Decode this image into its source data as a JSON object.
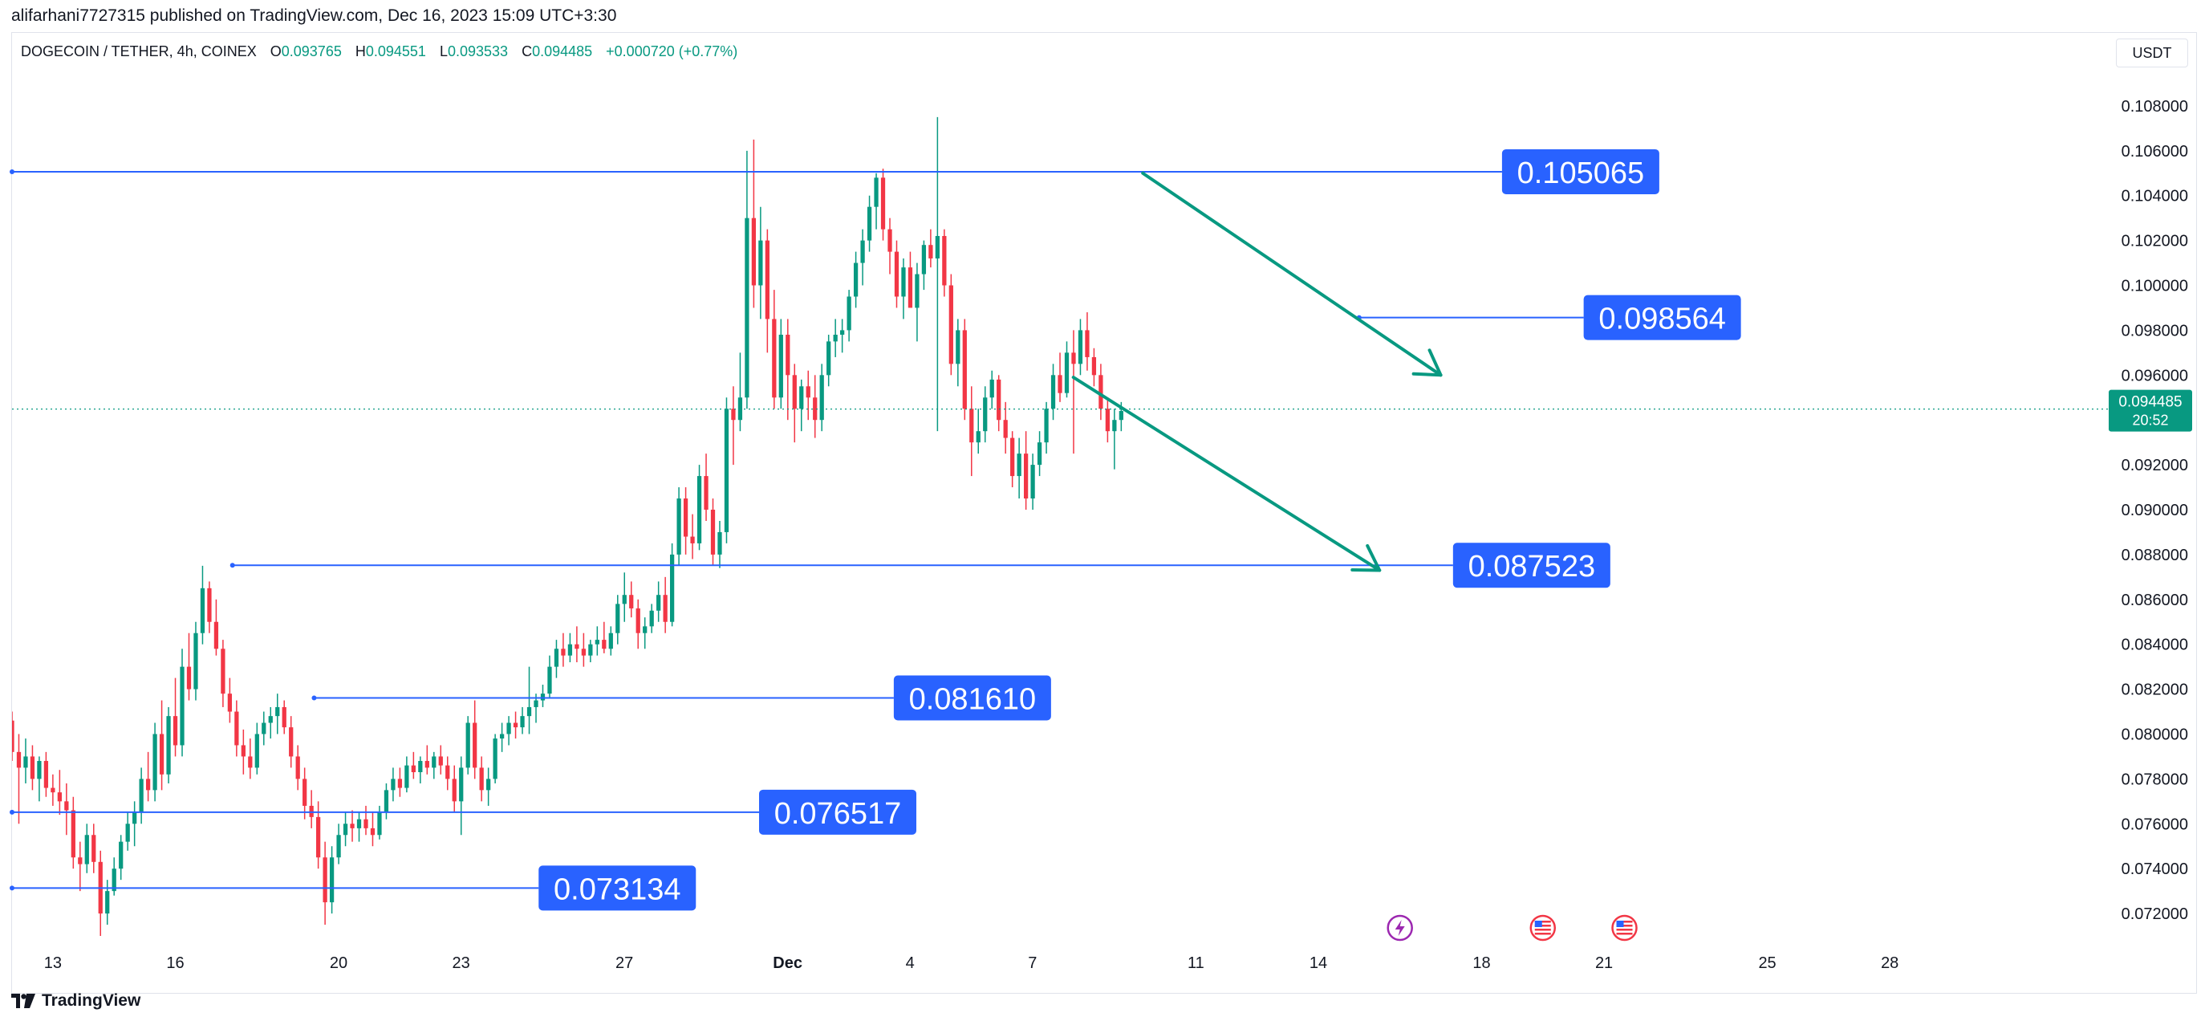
{
  "publisher_line": "alifarhani7727315 published on TradingView.com, Dec 16, 2023 15:09 UTC+3:30",
  "legend": {
    "symbol": "DOGECOIN / TETHER, 4h, COINEX",
    "open_label": "O",
    "open": "0.093765",
    "high_label": "H",
    "high": "0.094551",
    "low_label": "L",
    "low": "0.093533",
    "close_label": "C",
    "close": "0.094485",
    "change": "+0.000720 (+0.77%)"
  },
  "currency": "USDT",
  "footer": {
    "brand": "TradingView"
  },
  "colors": {
    "up": "#089981",
    "down": "#f23645",
    "line": "#2962ff",
    "label_bg": "#2962ff",
    "trend": "#089981"
  },
  "chart_data": {
    "type": "candlestick",
    "symbol": "DOGECOIN / TETHER",
    "interval": "4h",
    "exchange": "COINEX",
    "y_ticks": [
      0.072,
      0.074,
      0.076,
      0.078,
      0.08,
      0.082,
      0.084,
      0.086,
      0.088,
      0.09,
      0.092,
      0.094,
      0.096,
      0.098,
      0.1,
      0.102,
      0.104,
      0.106,
      0.108
    ],
    "y_tick_labels": [
      "0.072000",
      "0.074000",
      "0.076000",
      "0.078000",
      "0.080000",
      "0.082000",
      "0.084000",
      "0.086000",
      "0.088000",
      "0.090000",
      "0.092000",
      "0.094000",
      "0.096000",
      "0.098000",
      "0.100000",
      "0.102000",
      "0.104000",
      "0.106000",
      "0.108000"
    ],
    "ylim": [
      0.0705,
      0.1095
    ],
    "x_ticks": [
      "13",
      "16",
      "20",
      "23",
      "27",
      "Dec",
      "4",
      "7",
      "11",
      "14",
      "18",
      "21",
      "25",
      "28"
    ],
    "x_tick_days": [
      13,
      16,
      20,
      23,
      27,
      31,
      34,
      37,
      41,
      44,
      48,
      51,
      55,
      58
    ],
    "x_tick_bold": [
      "Dec"
    ],
    "xlim_days": [
      12.0,
      63.5
    ],
    "current_price": {
      "value": 0.094485,
      "label": "0.094485",
      "countdown": "20:52"
    },
    "horizontal_levels": [
      {
        "value": 0.105065,
        "label": "0.105065",
        "start_day": 12.0,
        "end_day": 48.5
      },
      {
        "value": 0.098564,
        "label": "0.098564",
        "start_day": 45.0,
        "end_day": 50.5
      },
      {
        "value": 0.087523,
        "label": "0.087523",
        "start_day": 17.4,
        "end_day": 47.3
      },
      {
        "value": 0.08161,
        "label": "0.081610",
        "start_day": 19.4,
        "end_day": 33.6
      },
      {
        "value": 0.076517,
        "label": "0.076517",
        "start_day": 12.0,
        "end_day": 30.3
      },
      {
        "value": 0.073134,
        "label": "0.073134",
        "start_day": 12.0,
        "end_day": 24.9
      }
    ],
    "trend_arrows": [
      {
        "from": {
          "day": 39.7,
          "price": 0.105
        },
        "to": {
          "day": 47.0,
          "price": 0.096
        }
      },
      {
        "from": {
          "day": 38.0,
          "price": 0.0959
        },
        "to": {
          "day": 45.5,
          "price": 0.0873
        }
      }
    ],
    "event_icons": [
      {
        "day": 46.0,
        "icon": "lightning-icon"
      },
      {
        "day": 49.5,
        "icon": "us-flag-icon"
      },
      {
        "day": 51.5,
        "icon": "us-flag-icon"
      }
    ],
    "ohlc": [
      [
        0.0806,
        0.081,
        0.0788,
        0.0792
      ],
      [
        0.0792,
        0.08,
        0.076,
        0.0785
      ],
      [
        0.0785,
        0.0798,
        0.0778,
        0.079
      ],
      [
        0.079,
        0.0795,
        0.0775,
        0.078
      ],
      [
        0.078,
        0.079,
        0.077,
        0.0788
      ],
      [
        0.0788,
        0.0792,
        0.0772,
        0.0776
      ],
      [
        0.0776,
        0.0782,
        0.0768,
        0.0774
      ],
      [
        0.0774,
        0.0784,
        0.0764,
        0.077
      ],
      [
        0.077,
        0.0778,
        0.0755,
        0.0766
      ],
      [
        0.0766,
        0.0772,
        0.074,
        0.0745
      ],
      [
        0.0745,
        0.0752,
        0.073,
        0.0742
      ],
      [
        0.0742,
        0.076,
        0.0738,
        0.0755
      ],
      [
        0.0755,
        0.076,
        0.0738,
        0.0743
      ],
      [
        0.0743,
        0.0748,
        0.071,
        0.072
      ],
      [
        0.072,
        0.0735,
        0.0715,
        0.073
      ],
      [
        0.073,
        0.0745,
        0.0728,
        0.074
      ],
      [
        0.074,
        0.0755,
        0.0735,
        0.0752
      ],
      [
        0.0752,
        0.0765,
        0.0748,
        0.076
      ],
      [
        0.076,
        0.077,
        0.075,
        0.0765
      ],
      [
        0.0765,
        0.0785,
        0.076,
        0.078
      ],
      [
        0.078,
        0.0792,
        0.077,
        0.0775
      ],
      [
        0.0775,
        0.0805,
        0.077,
        0.08
      ],
      [
        0.08,
        0.0815,
        0.0775,
        0.0782
      ],
      [
        0.0782,
        0.0812,
        0.0778,
        0.0808
      ],
      [
        0.0808,
        0.0825,
        0.079,
        0.0795
      ],
      [
        0.0795,
        0.0838,
        0.079,
        0.083
      ],
      [
        0.083,
        0.0845,
        0.0815,
        0.082
      ],
      [
        0.082,
        0.085,
        0.0815,
        0.0845
      ],
      [
        0.0845,
        0.0875,
        0.084,
        0.0865
      ],
      [
        0.0865,
        0.0868,
        0.0845,
        0.085
      ],
      [
        0.085,
        0.086,
        0.0835,
        0.0838
      ],
      [
        0.0838,
        0.0842,
        0.0812,
        0.0818
      ],
      [
        0.0818,
        0.0825,
        0.0805,
        0.081
      ],
      [
        0.081,
        0.0815,
        0.079,
        0.0795
      ],
      [
        0.0795,
        0.0802,
        0.0782,
        0.079
      ],
      [
        0.079,
        0.0798,
        0.078,
        0.0785
      ],
      [
        0.0785,
        0.0805,
        0.0782,
        0.08
      ],
      [
        0.08,
        0.081,
        0.0795,
        0.0805
      ],
      [
        0.0805,
        0.0812,
        0.0798,
        0.0808
      ],
      [
        0.0808,
        0.0818,
        0.08,
        0.0812
      ],
      [
        0.0812,
        0.0815,
        0.08,
        0.0803
      ],
      [
        0.0803,
        0.0808,
        0.0785,
        0.079
      ],
      [
        0.079,
        0.0795,
        0.0775,
        0.078
      ],
      [
        0.078,
        0.0785,
        0.0762,
        0.0768
      ],
      [
        0.0768,
        0.0775,
        0.0758,
        0.0763
      ],
      [
        0.0763,
        0.077,
        0.074,
        0.0745
      ],
      [
        0.0745,
        0.0752,
        0.0715,
        0.0725
      ],
      [
        0.0725,
        0.075,
        0.072,
        0.0745
      ],
      [
        0.0745,
        0.076,
        0.0742,
        0.0755
      ],
      [
        0.0755,
        0.0765,
        0.075,
        0.076
      ],
      [
        0.076,
        0.0766,
        0.0752,
        0.0758
      ],
      [
        0.0758,
        0.0765,
        0.0752,
        0.0762
      ],
      [
        0.0762,
        0.0768,
        0.0755,
        0.0758
      ],
      [
        0.0758,
        0.0765,
        0.075,
        0.0755
      ],
      [
        0.0755,
        0.0768,
        0.0753,
        0.0765
      ],
      [
        0.0765,
        0.0778,
        0.0762,
        0.0775
      ],
      [
        0.0775,
        0.0785,
        0.077,
        0.078
      ],
      [
        0.078,
        0.0785,
        0.0772,
        0.0776
      ],
      [
        0.0776,
        0.079,
        0.0774,
        0.0786
      ],
      [
        0.0786,
        0.0792,
        0.078,
        0.0783
      ],
      [
        0.0783,
        0.079,
        0.0778,
        0.0788
      ],
      [
        0.0788,
        0.0795,
        0.0782,
        0.0785
      ],
      [
        0.0785,
        0.0792,
        0.078,
        0.079
      ],
      [
        0.079,
        0.0795,
        0.0782,
        0.0786
      ],
      [
        0.0786,
        0.079,
        0.0775,
        0.078
      ],
      [
        0.078,
        0.0786,
        0.0765,
        0.077
      ],
      [
        0.077,
        0.079,
        0.0755,
        0.0785
      ],
      [
        0.0785,
        0.0808,
        0.0782,
        0.0805
      ],
      [
        0.0805,
        0.0815,
        0.078,
        0.0785
      ],
      [
        0.0785,
        0.079,
        0.077,
        0.0775
      ],
      [
        0.0775,
        0.0785,
        0.0768,
        0.078
      ],
      [
        0.078,
        0.08,
        0.0778,
        0.0798
      ],
      [
        0.0798,
        0.0805,
        0.0792,
        0.08
      ],
      [
        0.08,
        0.0808,
        0.0795,
        0.0805
      ],
      [
        0.0805,
        0.081,
        0.0798,
        0.0803
      ],
      [
        0.0803,
        0.0812,
        0.08,
        0.0808
      ],
      [
        0.0808,
        0.083,
        0.08,
        0.0812
      ],
      [
        0.0812,
        0.0818,
        0.0805,
        0.0815
      ],
      [
        0.0815,
        0.0822,
        0.0812,
        0.0818
      ],
      [
        0.0818,
        0.0835,
        0.0816,
        0.083
      ],
      [
        0.083,
        0.0842,
        0.0825,
        0.0838
      ],
      [
        0.0838,
        0.0845,
        0.083,
        0.0835
      ],
      [
        0.0835,
        0.0845,
        0.0832,
        0.084
      ],
      [
        0.084,
        0.0848,
        0.0832,
        0.0838
      ],
      [
        0.0838,
        0.0845,
        0.083,
        0.0835
      ],
      [
        0.0835,
        0.0842,
        0.0832,
        0.084
      ],
      [
        0.084,
        0.0848,
        0.0835,
        0.0842
      ],
      [
        0.0842,
        0.085,
        0.0836,
        0.0838
      ],
      [
        0.0838,
        0.0848,
        0.0835,
        0.0845
      ],
      [
        0.0845,
        0.0862,
        0.084,
        0.0858
      ],
      [
        0.0858,
        0.0872,
        0.085,
        0.0862
      ],
      [
        0.0862,
        0.0868,
        0.0852,
        0.0856
      ],
      [
        0.0856,
        0.086,
        0.0838,
        0.0845
      ],
      [
        0.0845,
        0.0852,
        0.0838,
        0.0848
      ],
      [
        0.0848,
        0.0858,
        0.0845,
        0.0855
      ],
      [
        0.0855,
        0.0868,
        0.085,
        0.0862
      ],
      [
        0.0862,
        0.087,
        0.0845,
        0.085
      ],
      [
        0.085,
        0.0885,
        0.0848,
        0.088
      ],
      [
        0.088,
        0.091,
        0.0875,
        0.0905
      ],
      [
        0.0905,
        0.091,
        0.088,
        0.0888
      ],
      [
        0.0888,
        0.0898,
        0.0878,
        0.0885
      ],
      [
        0.0885,
        0.092,
        0.0882,
        0.0915
      ],
      [
        0.0915,
        0.0925,
        0.0895,
        0.09
      ],
      [
        0.09,
        0.0905,
        0.0875,
        0.088
      ],
      [
        0.088,
        0.0895,
        0.0874,
        0.089
      ],
      [
        0.089,
        0.095,
        0.0885,
        0.0945
      ],
      [
        0.0945,
        0.0955,
        0.092,
        0.094
      ],
      [
        0.094,
        0.097,
        0.0935,
        0.095
      ],
      [
        0.095,
        0.106,
        0.0945,
        0.103
      ],
      [
        0.103,
        0.1065,
        0.099,
        0.1
      ],
      [
        0.1,
        0.1035,
        0.0985,
        0.102
      ],
      [
        0.102,
        0.1025,
        0.097,
        0.0985
      ],
      [
        0.0985,
        0.0998,
        0.0945,
        0.095
      ],
      [
        0.095,
        0.0985,
        0.0945,
        0.0978
      ],
      [
        0.0978,
        0.0985,
        0.094,
        0.096
      ],
      [
        0.096,
        0.0965,
        0.093,
        0.0945
      ],
      [
        0.0945,
        0.0958,
        0.0935,
        0.0955
      ],
      [
        0.0955,
        0.0962,
        0.094,
        0.095
      ],
      [
        0.095,
        0.096,
        0.0932,
        0.094
      ],
      [
        0.094,
        0.0965,
        0.0935,
        0.096
      ],
      [
        0.096,
        0.0978,
        0.0955,
        0.0975
      ],
      [
        0.0975,
        0.0985,
        0.0968,
        0.0978
      ],
      [
        0.0978,
        0.0985,
        0.097,
        0.098
      ],
      [
        0.098,
        0.0998,
        0.0975,
        0.0995
      ],
      [
        0.0995,
        0.1015,
        0.099,
        0.101
      ],
      [
        0.101,
        0.1025,
        0.1,
        0.102
      ],
      [
        0.102,
        0.104,
        0.1015,
        0.1035
      ],
      [
        0.1035,
        0.105,
        0.1025,
        0.1048
      ],
      [
        0.1048,
        0.1052,
        0.102,
        0.1025
      ],
      [
        0.1025,
        0.103,
        0.1005,
        0.1015
      ],
      [
        0.1015,
        0.102,
        0.099,
        0.0995
      ],
      [
        0.0995,
        0.1012,
        0.0985,
        0.1008
      ],
      [
        0.1008,
        0.1015,
        0.099,
        0.099
      ],
      [
        0.099,
        0.101,
        0.0975,
        0.1005
      ],
      [
        0.1005,
        0.102,
        0.0998,
        0.1018
      ],
      [
        0.1018,
        0.1025,
        0.1008,
        0.1012
      ],
      [
        0.1012,
        0.1075,
        0.0935,
        0.1022
      ],
      [
        0.1022,
        0.1025,
        0.0995,
        0.1
      ],
      [
        0.1,
        0.1005,
        0.096,
        0.0965
      ],
      [
        0.0965,
        0.0985,
        0.0955,
        0.098
      ],
      [
        0.098,
        0.0985,
        0.094,
        0.0945
      ],
      [
        0.0945,
        0.0955,
        0.0915,
        0.093
      ],
      [
        0.093,
        0.0945,
        0.0925,
        0.0935
      ],
      [
        0.0935,
        0.0955,
        0.093,
        0.095
      ],
      [
        0.095,
        0.0962,
        0.0945,
        0.0958
      ],
      [
        0.0958,
        0.096,
        0.0935,
        0.094
      ],
      [
        0.094,
        0.0948,
        0.0925,
        0.0932
      ],
      [
        0.0932,
        0.0935,
        0.091,
        0.0915
      ],
      [
        0.0915,
        0.0932,
        0.0905,
        0.0925
      ],
      [
        0.0925,
        0.0935,
        0.09,
        0.0905
      ],
      [
        0.0905,
        0.0925,
        0.09,
        0.092
      ],
      [
        0.092,
        0.0935,
        0.0915,
        0.093
      ],
      [
        0.093,
        0.0948,
        0.0925,
        0.0945
      ],
      [
        0.0945,
        0.0965,
        0.094,
        0.096
      ],
      [
        0.096,
        0.097,
        0.0948,
        0.0952
      ],
      [
        0.0952,
        0.0975,
        0.095,
        0.097
      ],
      [
        0.097,
        0.098,
        0.0925,
        0.0965
      ],
      [
        0.0965,
        0.0985,
        0.096,
        0.098
      ],
      [
        0.098,
        0.0988,
        0.0962,
        0.0968
      ],
      [
        0.0968,
        0.0972,
        0.0955,
        0.096
      ],
      [
        0.096,
        0.0965,
        0.094,
        0.0945
      ],
      [
        0.0945,
        0.095,
        0.093,
        0.0935
      ],
      [
        0.0935,
        0.0945,
        0.0918,
        0.094
      ],
      [
        0.094,
        0.0948,
        0.0935,
        0.0944
      ]
    ],
    "first_candle_day": 12.0,
    "candle_spacing_days": 0.1667
  }
}
